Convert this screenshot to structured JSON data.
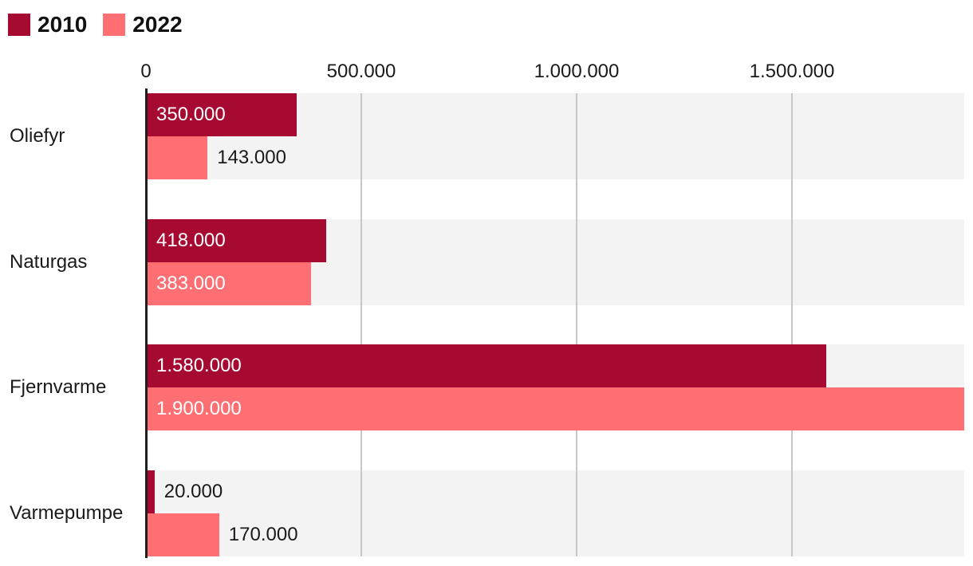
{
  "chart_data": {
    "type": "bar",
    "orientation": "horizontal",
    "title": "",
    "categories": [
      "Oliefyr",
      "Naturgas",
      "Fjernvarme",
      "Varmepumpe"
    ],
    "series": [
      {
        "name": "2010",
        "color": "#a60a31",
        "values": [
          350000,
          418000,
          1580000,
          20000
        ],
        "value_labels": [
          "350.000",
          "418.000",
          "1.580.000",
          "20.000"
        ]
      },
      {
        "name": "2022",
        "color": "#fd6f72",
        "values": [
          143000,
          383000,
          1900000,
          170000
        ],
        "value_labels": [
          "143.000",
          "383.000",
          "1.900.000",
          "170.000"
        ]
      }
    ],
    "xlim": [
      0,
      1900000
    ],
    "xticks": [
      {
        "value": 0,
        "label": "0"
      },
      {
        "value": 500000,
        "label": "500.000"
      },
      {
        "value": 1000000,
        "label": "1.000.000"
      },
      {
        "value": 1500000,
        "label": "1.500.000"
      }
    ],
    "grid": true,
    "legend_position": "top-left"
  },
  "colors": {
    "series_2010": "#a60a31",
    "series_2022": "#fd6f72",
    "row_background": "#f3f3f3",
    "gridline": "#c7c7c7",
    "axis_line": "#1f1f1f",
    "label_inside": "#ffffff",
    "label_outside": "#1a1a1a",
    "text": "#1a1a1a",
    "background": "#ffffff"
  }
}
